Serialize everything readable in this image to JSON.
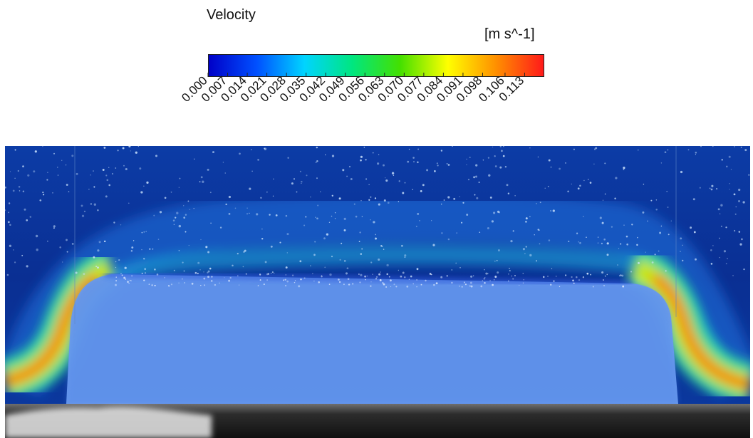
{
  "chart_data": {
    "type": "heatmap",
    "title": "Velocity",
    "units": "[m s^-1]",
    "colormap": [
      "#0000c8",
      "#0050ff",
      "#00d4ff",
      "#00e680",
      "#44e000",
      "#ffff00",
      "#ff9000",
      "#ff1a1a"
    ],
    "vmin": 0.0,
    "vmax": 0.12,
    "tick_labels": [
      "0.000",
      "0.007",
      "0.014",
      "0.021",
      "0.028",
      "0.035",
      "0.042",
      "0.049",
      "0.056",
      "0.063",
      "0.070",
      "0.077",
      "0.084",
      "0.091",
      "0.098",
      "0.106",
      "0.113"
    ],
    "tick_values": [
      0.0,
      0.007,
      0.014,
      0.021,
      0.028,
      0.035,
      0.042,
      0.049,
      0.056,
      0.063,
      0.07,
      0.077,
      0.084,
      0.091,
      0.098,
      0.106,
      0.113
    ],
    "field": {
      "background_color": "#0a2d8c",
      "gravity_current_color": "#6e9ff0",
      "sediment_bed": "grayscale photograph",
      "max_velocity_region": "near the left and right flanks of the current head"
    }
  }
}
